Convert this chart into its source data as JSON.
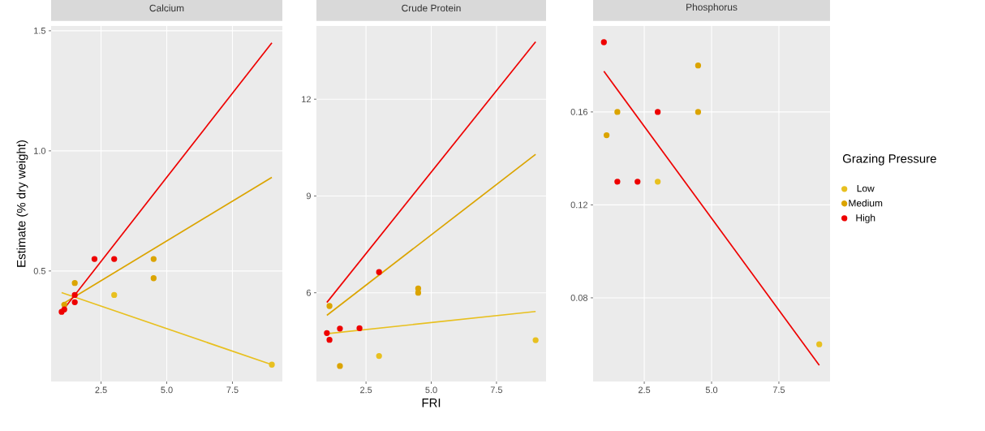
{
  "chart_data": [
    {
      "type": "scatter",
      "title": "Calcium",
      "ylabel": "Estimate (% dry weight)",
      "xlim": [
        0.6,
        9.4
      ],
      "ylim": [
        0.04,
        1.52
      ],
      "xticks": [
        {
          "value": 2.5,
          "label": "2.5"
        },
        {
          "value": 5.0,
          "label": "5.0"
        },
        {
          "value": 7.5,
          "label": "7.5"
        }
      ],
      "yticks": [
        0.5,
        {
          "value": 1.0,
          "label": "1.0"
        },
        1.5
      ],
      "grid": true,
      "marker": "circle",
      "series": [
        {
          "type": "line",
          "marker": "none",
          "color": "#e8c020",
          "x": [
            1,
            9
          ],
          "values": [
            0.41,
            0.11
          ]
        },
        {
          "type": "line",
          "marker": "none",
          "color": "#dba400",
          "x": [
            1,
            9
          ],
          "values": [
            0.36,
            0.89
          ]
        },
        {
          "type": "line",
          "marker": "none",
          "color": "#ee0000",
          "x": [
            1,
            9
          ],
          "values": [
            0.33,
            1.45
          ]
        },
        {
          "color": "#e8c020",
          "x": [
            3,
            9
          ],
          "values": [
            0.4,
            0.11
          ]
        },
        {
          "color": "#dba400",
          "x": [
            1.1,
            1.5,
            4.5,
            4.5
          ],
          "values": [
            0.36,
            0.45,
            0.55,
            0.47
          ]
        },
        {
          "color": "#ee0000",
          "x": [
            1,
            1.1,
            1.5,
            1.5,
            2.25,
            3
          ],
          "values": [
            0.33,
            0.34,
            0.4,
            0.37,
            0.55,
            0.55
          ]
        }
      ]
    },
    {
      "type": "scatter",
      "title": "Crude Protein",
      "xlabel": "FRI",
      "xlim": [
        0.6,
        9.4
      ],
      "ylim": [
        3.25,
        14.27
      ],
      "xticks": [
        {
          "value": 2.5,
          "label": "2.5"
        },
        {
          "value": 5.0,
          "label": "5.0"
        },
        {
          "value": 7.5,
          "label": "7.5"
        }
      ],
      "yticks": [
        6,
        9,
        12
      ],
      "grid": true,
      "marker": "circle",
      "series": [
        {
          "type": "line",
          "marker": "none",
          "color": "#e8c020",
          "x": [
            1,
            9
          ],
          "values": [
            4.73,
            5.42
          ]
        },
        {
          "type": "line",
          "marker": "none",
          "color": "#dba400",
          "x": [
            1,
            9
          ],
          "values": [
            5.3,
            10.29
          ]
        },
        {
          "type": "line",
          "marker": "none",
          "color": "#ee0000",
          "x": [
            1,
            9
          ],
          "values": [
            5.7,
            13.78
          ]
        },
        {
          "color": "#e8c020",
          "x": [
            3,
            9
          ],
          "values": [
            4.04,
            4.53
          ]
        },
        {
          "color": "#dba400",
          "x": [
            1.1,
            1.5,
            4.5,
            4.5
          ],
          "values": [
            5.59,
            3.73,
            6.13,
            6.0
          ]
        },
        {
          "color": "#ee0000",
          "x": [
            1,
            1.1,
            1.5,
            2.25,
            3
          ],
          "values": [
            4.75,
            4.54,
            4.89,
            4.9,
            6.64
          ]
        }
      ]
    },
    {
      "type": "scatter",
      "title": "Phosphorus",
      "legend_title": "Grazing Pressure",
      "legend": "right",
      "xlim": [
        0.6,
        9.4
      ],
      "ylim": [
        0.044,
        0.197
      ],
      "xticks": [
        {
          "value": 2.5,
          "label": "2.5"
        },
        {
          "value": 5.0,
          "label": "5.0"
        },
        {
          "value": 7.5,
          "label": "7.5"
        }
      ],
      "yticks": [
        0.08,
        0.12,
        0.16
      ],
      "grid": true,
      "marker": "circle",
      "series": [
        {
          "type": "line",
          "marker": "none",
          "color": "#ee0000",
          "x": [
            1,
            9
          ],
          "values": [
            0.1775,
            0.051
          ]
        },
        {
          "name": "Low",
          "color": "#e8c020",
          "x": [
            3,
            9
          ],
          "values": [
            0.13,
            0.06
          ]
        },
        {
          "name": "Medium",
          "color": "#dba400",
          "x": [
            1.1,
            1.5,
            4.5,
            4.5
          ],
          "values": [
            0.15,
            0.16,
            0.18,
            0.16
          ]
        },
        {
          "name": "High",
          "color": "#ee0000",
          "x": [
            1,
            1.5,
            2.25,
            3
          ],
          "values": [
            0.19,
            0.13,
            0.13,
            0.16
          ]
        }
      ]
    }
  ]
}
